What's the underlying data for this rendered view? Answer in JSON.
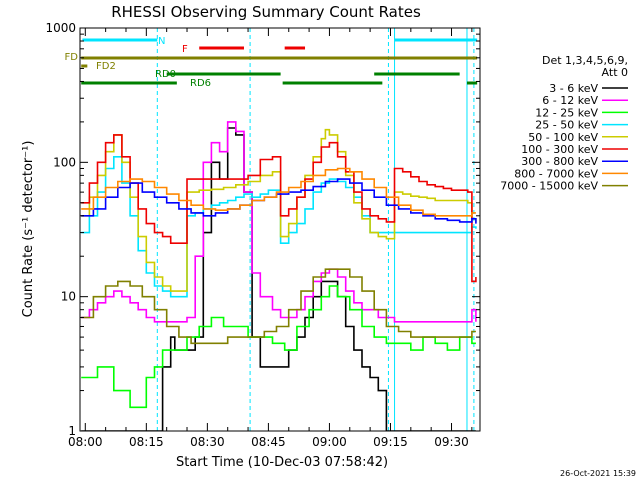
{
  "chart_data": {
    "type": "line",
    "title": "RHESSI Observing Summary Count Rates",
    "xlabel": "Start Time (10-Dec-03 07:58:42)",
    "ylabel": "Count Rate (s⁻¹ detector⁻¹)",
    "xlim": [
      478.7,
      577.0
    ],
    "ylim": [
      1,
      1000
    ],
    "y_scale": "log",
    "x_ticks": [
      {
        "value": 480,
        "label": "08:00"
      },
      {
        "value": 495,
        "label": "08:15"
      },
      {
        "value": 510,
        "label": "08:30"
      },
      {
        "value": 525,
        "label": "08:45"
      },
      {
        "value": 540,
        "label": "09:00"
      },
      {
        "value": 555,
        "label": "09:15"
      },
      {
        "value": 570,
        "label": "09:30"
      }
    ],
    "y_ticks": [
      {
        "value": 1,
        "label": "1"
      },
      {
        "value": 10,
        "label": "10"
      },
      {
        "value": 100,
        "label": "100"
      },
      {
        "value": 1000,
        "label": "1000"
      }
    ],
    "legend_header": [
      "Det 1,3,4,5,6,9,",
      "Att 0"
    ],
    "legend_position": "right",
    "timestamp": "26-Oct-2021 15:39",
    "vlines_solid": [
      478.7,
      556.0,
      573.8
    ],
    "vlines_dashed": [
      497.7,
      520.5,
      554.5,
      575.5
    ],
    "flag_bars": [
      {
        "label": "N",
        "color": "#00e5ff",
        "segments": [
          [
            479.3,
            497.7
          ],
          [
            556.0,
            576.3
          ]
        ]
      },
      {
        "label": "F",
        "color": "#ee0000",
        "segments": [
          [
            508.0,
            519.0
          ],
          [
            529.0,
            534.0
          ]
        ]
      },
      {
        "label": "FD",
        "color": "#808000",
        "segments": [
          [
            479.0,
            576.3
          ]
        ]
      },
      {
        "label": "FD2",
        "color": "#808000",
        "segments": [
          [
            479.0,
            480.5
          ]
        ]
      },
      {
        "label": "RD0",
        "color": "#008000",
        "segments": [
          [
            500.0,
            528.0
          ],
          [
            551.0,
            572.0
          ]
        ]
      },
      {
        "label": "RD6",
        "color": "#008000",
        "segments": [
          [
            479.0,
            502.5
          ],
          [
            528.5,
            553.0
          ],
          [
            573.8,
            576.3
          ]
        ]
      }
    ],
    "series": [
      {
        "name": "3 - 6 keV",
        "color": "#000000",
        "x": [
          479,
          484,
          487,
          490,
          492,
          494,
          495,
          497,
          499,
          501,
          502,
          505,
          507,
          509,
          511,
          513,
          515,
          517,
          519,
          521,
          523,
          526,
          528,
          530,
          532,
          534,
          536,
          538,
          540,
          542,
          544,
          546,
          548,
          550,
          552,
          554,
          556,
          558,
          560,
          562,
          564,
          566,
          568,
          570,
          572,
          574,
          575,
          576
        ],
        "y": [
          1,
          1,
          1,
          1,
          1,
          1,
          1,
          1,
          3,
          5,
          4,
          4,
          5,
          30,
          100,
          75,
          180,
          160,
          60,
          5,
          3,
          3,
          3,
          4,
          5,
          7,
          10,
          13,
          13,
          10,
          6,
          4,
          3,
          2.5,
          2,
          1,
          1,
          1,
          1,
          1,
          1,
          1,
          1,
          1,
          1,
          1,
          1,
          1
        ]
      },
      {
        "name": "6 - 12 keV",
        "color": "#ff00ff",
        "x": [
          479,
          481,
          483,
          485,
          487,
          489,
          491,
          493,
          495,
          497,
          499,
          501,
          502,
          505,
          507,
          509,
          511,
          513,
          515,
          517,
          519,
          521,
          523,
          526,
          528,
          530,
          532,
          534,
          536,
          538,
          540,
          542,
          544,
          546,
          548,
          550,
          552,
          554,
          556,
          558,
          560,
          562,
          564,
          566,
          568,
          570,
          572,
          574,
          575,
          576
        ],
        "y": [
          7,
          8,
          9,
          10,
          11,
          10,
          9,
          8,
          7,
          6.5,
          6.5,
          6.5,
          6.5,
          7,
          20,
          100,
          140,
          120,
          200,
          170,
          60,
          15,
          10,
          8,
          7,
          7,
          8,
          10,
          13,
          15,
          16,
          14,
          11,
          9,
          8,
          8,
          7,
          7,
          6.5,
          6.5,
          6.5,
          6.5,
          6.5,
          6.5,
          6.5,
          6.5,
          6.5,
          6.5,
          8,
          6.5
        ]
      },
      {
        "name": "12 - 25 keV",
        "color": "#00ff00",
        "x": [
          479,
          483,
          487,
          491,
          495,
          497,
          499,
          501,
          502,
          505,
          508,
          511,
          514,
          517,
          520,
          523,
          526,
          529,
          532,
          535,
          538,
          540,
          542,
          545,
          548,
          551,
          554,
          557,
          560,
          563,
          566,
          569,
          572,
          575,
          576
        ],
        "y": [
          2.5,
          3,
          2,
          1.5,
          2.5,
          3,
          4,
          4,
          4,
          5,
          6,
          7,
          6,
          6,
          5,
          5,
          4.5,
          4,
          6,
          8,
          10,
          12,
          10,
          8,
          6,
          5,
          4.5,
          4.5,
          4,
          5,
          4.5,
          4,
          5,
          4.5,
          4.5
        ]
      },
      {
        "name": "25 - 50 keV",
        "color": "#00e5ff",
        "x": [
          479,
          481,
          483,
          485,
          487,
          489,
          491,
          493,
          495,
          497,
          499,
          501,
          502,
          505,
          507,
          509,
          511,
          513,
          515,
          517,
          519,
          521,
          523,
          525,
          528,
          530,
          532,
          534,
          536,
          538,
          540,
          542,
          544,
          546,
          548,
          550,
          552,
          554,
          556,
          558,
          560,
          562,
          564,
          566,
          568,
          570,
          572,
          574,
          575,
          576
        ],
        "y": [
          30,
          40,
          60,
          90,
          110,
          70,
          40,
          22,
          15,
          12,
          11,
          10,
          10,
          40,
          42,
          45,
          48,
          50,
          52,
          55,
          58,
          55,
          58,
          62,
          25,
          30,
          35,
          45,
          60,
          70,
          75,
          72,
          65,
          55,
          40,
          30,
          30,
          30,
          30,
          30,
          30,
          30,
          30,
          30,
          30,
          30,
          30,
          30,
          33,
          32
        ]
      },
      {
        "name": "50 - 100 keV",
        "color": "#cccc00",
        "x": [
          479,
          481,
          483,
          485,
          487,
          489,
          491,
          493,
          495,
          497,
          499,
          501,
          502,
          505,
          508,
          511,
          514,
          517,
          520,
          523,
          526,
          528,
          530,
          532,
          534,
          536,
          538,
          539,
          540,
          542,
          544,
          546,
          548,
          550,
          552,
          554,
          556,
          558,
          560,
          562,
          564,
          566,
          568,
          570,
          572,
          574,
          575,
          576
        ],
        "y": [
          40,
          55,
          80,
          120,
          160,
          100,
          55,
          28,
          18,
          14,
          12,
          11,
          11,
          60,
          62,
          63,
          65,
          68,
          72,
          80,
          85,
          28,
          35,
          55,
          80,
          110,
          150,
          175,
          160,
          120,
          80,
          50,
          38,
          30,
          28,
          27,
          60,
          58,
          56,
          55,
          54,
          52,
          52,
          52,
          52,
          50,
          38,
          36
        ]
      },
      {
        "name": "100 - 300 keV",
        "color": "#ee0000",
        "x": [
          479,
          481,
          483,
          485,
          487,
          489,
          491,
          493,
          495,
          497,
          499,
          501,
          502,
          505,
          508,
          511,
          514,
          517,
          520,
          523,
          526,
          528,
          530,
          532,
          534,
          536,
          538,
          540,
          542,
          544,
          546,
          548,
          550,
          552,
          554,
          556,
          558,
          560,
          562,
          564,
          566,
          568,
          570,
          572,
          574,
          575,
          576
        ],
        "y": [
          50,
          70,
          100,
          140,
          160,
          110,
          70,
          45,
          35,
          30,
          28,
          25,
          25,
          75,
          75,
          75,
          75,
          75,
          80,
          105,
          110,
          40,
          45,
          55,
          75,
          100,
          130,
          140,
          110,
          85,
          60,
          45,
          40,
          38,
          36,
          90,
          85,
          78,
          72,
          68,
          66,
          64,
          62,
          62,
          60,
          13,
          14
        ]
      },
      {
        "name": "300 - 800 keV",
        "color": "#0000ff",
        "x": [
          479,
          482,
          485,
          488,
          491,
          494,
          497,
          500,
          503,
          506,
          509,
          512,
          515,
          518,
          521,
          524,
          527,
          530,
          533,
          536,
          539,
          542,
          545,
          548,
          551,
          554,
          557,
          560,
          563,
          566,
          569,
          572,
          575,
          576
        ],
        "y": [
          40,
          45,
          55,
          65,
          70,
          60,
          55,
          50,
          45,
          42,
          40,
          42,
          45,
          48,
          52,
          55,
          58,
          60,
          62,
          66,
          72,
          75,
          70,
          62,
          55,
          48,
          45,
          42,
          40,
          38,
          37,
          36,
          38,
          35
        ]
      },
      {
        "name": "800 - 7000 keV",
        "color": "#ff8800",
        "x": [
          479,
          482,
          485,
          488,
          491,
          494,
          497,
          500,
          503,
          506,
          509,
          512,
          515,
          518,
          521,
          524,
          527,
          530,
          533,
          536,
          539,
          542,
          545,
          548,
          551,
          554,
          557,
          560,
          563,
          566,
          569,
          572,
          575,
          576
        ],
        "y": [
          45,
          55,
          65,
          72,
          75,
          72,
          65,
          58,
          52,
          48,
          45,
          44,
          45,
          48,
          52,
          55,
          60,
          65,
          72,
          80,
          88,
          90,
          85,
          75,
          65,
          55,
          48,
          44,
          41,
          40,
          40,
          40,
          42,
          42
        ]
      },
      {
        "name": "7000 - 15000 keV",
        "color": "#808000",
        "x": [
          479,
          482,
          485,
          488,
          491,
          494,
          497,
          500,
          503,
          506,
          509,
          512,
          515,
          518,
          521,
          524,
          527,
          530,
          533,
          536,
          539,
          542,
          545,
          548,
          551,
          554,
          557,
          560,
          563,
          566,
          569,
          572,
          575,
          576
        ],
        "y": [
          7,
          10,
          12,
          13,
          12,
          10,
          8,
          6,
          5,
          4.5,
          4.5,
          4.5,
          5,
          5,
          5,
          5.5,
          6,
          8,
          11,
          14,
          16,
          16,
          14,
          11,
          8,
          6,
          5.5,
          5,
          5,
          5,
          5,
          5,
          5.5,
          5.5
        ]
      }
    ]
  }
}
